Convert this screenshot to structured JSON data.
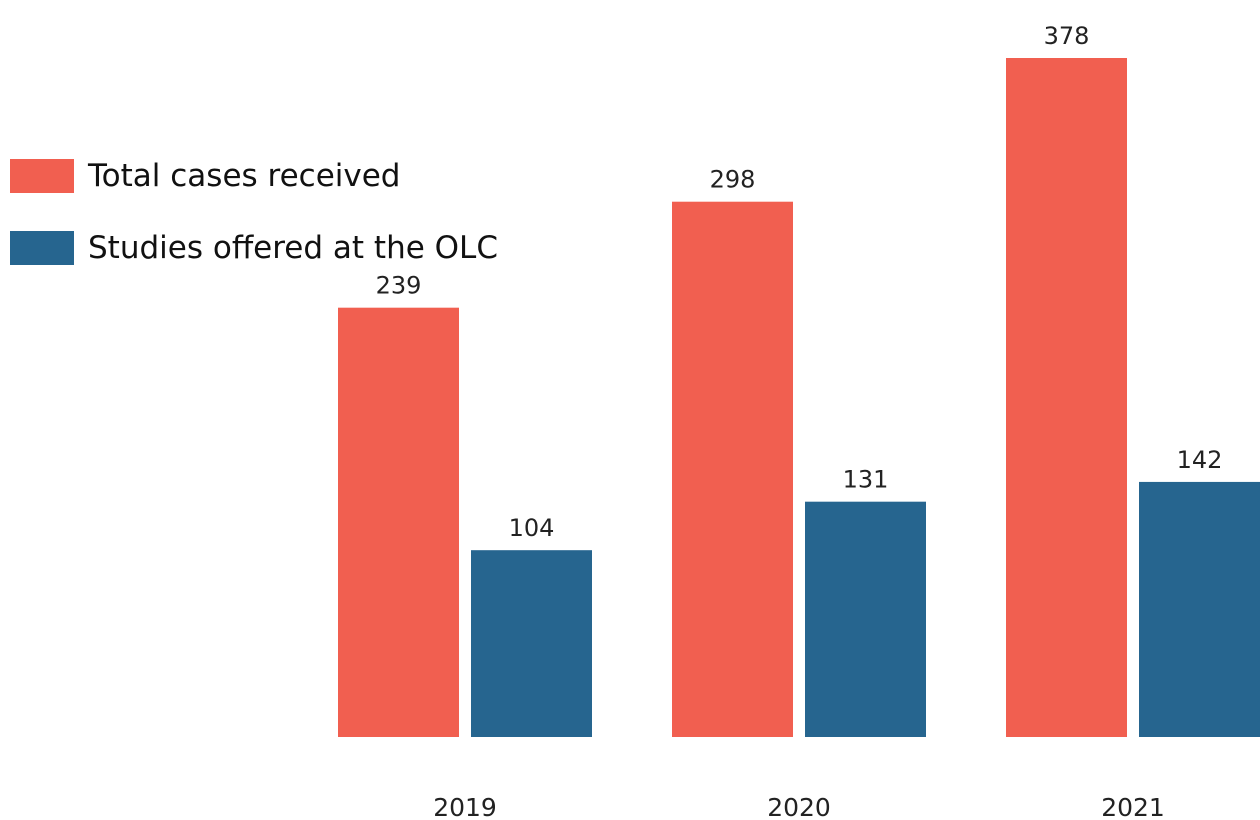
{
  "chart_data": {
    "type": "bar",
    "categories": [
      "2019",
      "2020",
      "2021"
    ],
    "series": [
      {
        "name": "Total cases received",
        "values": [
          239,
          298,
          378
        ],
        "color": "#f15f50"
      },
      {
        "name": "Studies offered at the OLC",
        "values": [
          104,
          131,
          142
        ],
        "color": "#26658f"
      }
    ],
    "title": "",
    "xlabel": "",
    "ylabel": "",
    "ylim": [
      0,
      378
    ],
    "grid": false,
    "legend_position": "top-left",
    "data_labels": true,
    "axes_visible": false
  }
}
